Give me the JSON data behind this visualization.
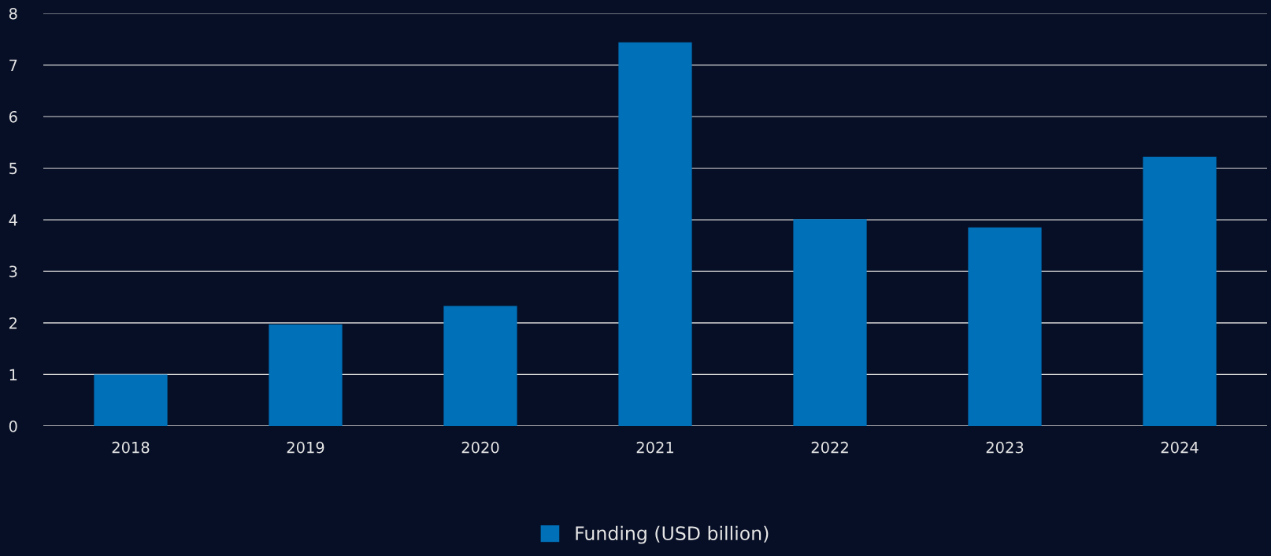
{
  "chart_data": {
    "type": "bar",
    "categories": [
      "2018",
      "2019",
      "2020",
      "2021",
      "2022",
      "2023",
      "2024"
    ],
    "series": [
      {
        "name": "Funding (USD billion)",
        "color": "#0070b8",
        "values": [
          1.0,
          1.97,
          2.33,
          7.44,
          4.01,
          3.85,
          5.22
        ]
      }
    ],
    "ylim": [
      0,
      8
    ],
    "yticks": [
      0,
      1,
      2,
      3,
      4,
      5,
      6,
      7,
      8
    ],
    "grid": "y",
    "legend": "bottom"
  }
}
